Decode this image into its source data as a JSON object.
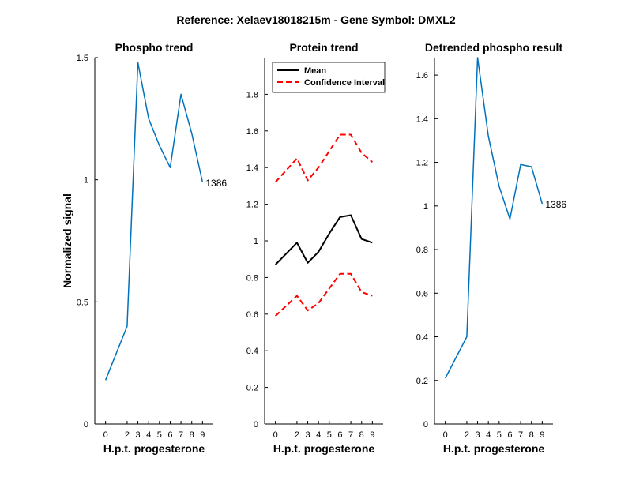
{
  "figure_title": "Reference:  Xelaev18018215m - Gene Symbol:  DMXL2",
  "chart_data": [
    {
      "type": "line",
      "title": "Phospho trend",
      "xlabel": "H.p.t. progesterone",
      "ylabel": "Normalized signal",
      "x": [
        0,
        2,
        3,
        4,
        5,
        6,
        7,
        8,
        9
      ],
      "xticks": [
        0,
        2,
        3,
        4,
        5,
        6,
        7,
        8,
        9
      ],
      "yticks": [
        0,
        0.5,
        1,
        1.5
      ],
      "ylim": [
        0,
        1.5
      ],
      "series": [
        {
          "values": [
            0.18,
            0.4,
            1.48,
            1.25,
            1.14,
            1.05,
            1.35,
            1.19,
            0.99
          ],
          "color": "#0072bd",
          "style": "solid"
        }
      ],
      "annotation": "1386"
    },
    {
      "type": "line",
      "title": "Protein trend",
      "xlabel": "H.p.t. progesterone",
      "ylabel": "",
      "x": [
        0,
        2,
        3,
        4,
        5,
        6,
        7,
        8,
        9
      ],
      "xticks": [
        0,
        2,
        3,
        4,
        5,
        6,
        7,
        8,
        9
      ],
      "yticks": [
        0,
        0.2,
        0.4,
        0.6,
        0.8,
        1,
        1.2,
        1.4,
        1.6,
        1.8
      ],
      "ylim": [
        0,
        2
      ],
      "legend": "top-left",
      "series": [
        {
          "name": "Mean",
          "values": [
            0.87,
            0.99,
            0.88,
            0.94,
            1.04,
            1.13,
            1.14,
            1.01,
            0.99
          ],
          "color": "#000000",
          "style": "solid"
        },
        {
          "name": "Confidence Interval",
          "values": [
            1.32,
            1.45,
            1.33,
            1.4,
            1.49,
            1.58,
            1.58,
            1.48,
            1.43
          ],
          "color": "#ff0000",
          "style": "dashed"
        },
        {
          "values": [
            0.59,
            0.7,
            0.62,
            0.66,
            0.74,
            0.82,
            0.82,
            0.72,
            0.7
          ],
          "color": "#ff0000",
          "style": "dashed"
        }
      ]
    },
    {
      "type": "line",
      "title": "Detrended phospho result",
      "xlabel": "H.p.t. progesterone",
      "ylabel": "",
      "x": [
        0,
        2,
        3,
        4,
        5,
        6,
        7,
        8,
        9
      ],
      "xticks": [
        0,
        2,
        3,
        4,
        5,
        6,
        7,
        8,
        9
      ],
      "yticks": [
        0,
        0.2,
        0.4,
        0.6,
        0.8,
        1,
        1.2,
        1.4,
        1.6
      ],
      "ylim": [
        0,
        1.68
      ],
      "series": [
        {
          "values": [
            0.21,
            0.4,
            1.68,
            1.32,
            1.09,
            0.94,
            1.19,
            1.18,
            1.01
          ],
          "color": "#0072bd",
          "style": "solid"
        }
      ],
      "annotation": "1386"
    }
  ]
}
